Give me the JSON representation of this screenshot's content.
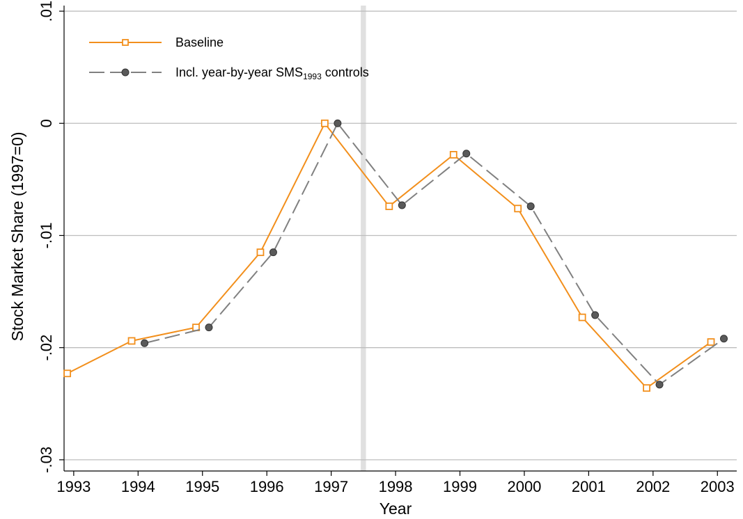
{
  "chart_data": {
    "type": "line",
    "title": "",
    "xlabel": "Year",
    "ylabel": "Stock Market Share (1997=0)",
    "ylim": [
      -0.031,
      0.0105
    ],
    "xlim": [
      1992.85,
      2003.3
    ],
    "y_ticks": [
      {
        "value": 0.01,
        "label": ".01"
      },
      {
        "value": 0.0,
        "label": "0"
      },
      {
        "value": -0.01,
        "label": "-.01"
      },
      {
        "value": -0.02,
        "label": "-.02"
      },
      {
        "value": -0.03,
        "label": "-.03"
      }
    ],
    "x_ticks": [
      {
        "value": 1993,
        "label": "1993"
      },
      {
        "value": 1994,
        "label": "1994"
      },
      {
        "value": 1995,
        "label": "1995"
      },
      {
        "value": 1996,
        "label": "1996"
      },
      {
        "value": 1997,
        "label": "1997"
      },
      {
        "value": 1998,
        "label": "1998"
      },
      {
        "value": 1999,
        "label": "1999"
      },
      {
        "value": 2000,
        "label": "2000"
      },
      {
        "value": 2001,
        "label": "2001"
      },
      {
        "value": 2002,
        "label": "2002"
      },
      {
        "value": 2003,
        "label": "2003"
      }
    ],
    "grid": "horizontal",
    "vertical_band": {
      "x_from": 1997.46,
      "x_to": 1997.54,
      "color": "#e0e0e0"
    },
    "legend_position": "top-left",
    "series": [
      {
        "name": "Baseline",
        "color": "#f28f1c",
        "marker": "hollow-square",
        "line_style": "solid",
        "x": [
          1992.9,
          1993.9,
          1994.9,
          1995.9,
          1996.9,
          1997.9,
          1998.9,
          1999.9,
          2000.9,
          2001.9,
          2002.9
        ],
        "values": [
          -0.0223,
          -0.0194,
          -0.0182,
          -0.0115,
          0.0,
          -0.0074,
          -0.0028,
          -0.0076,
          -0.0173,
          -0.0236,
          -0.0195
        ]
      },
      {
        "name": "Incl. year-by-year SMS",
        "name_subscript": "1993",
        "name_suffix": " controls",
        "color": "#808080",
        "marker": "filled-circle",
        "line_style": "dashed",
        "x": [
          1994.1,
          1995.1,
          1996.1,
          1997.1,
          1998.1,
          1999.1,
          2000.1,
          2001.1,
          2002.1,
          2003.1
        ],
        "values": [
          -0.0196,
          -0.0182,
          -0.0115,
          0.0,
          -0.0073,
          -0.0027,
          -0.0074,
          -0.0171,
          -0.0233,
          -0.0192
        ]
      }
    ],
    "colors": {
      "grid": "#bdbdbd",
      "axis": "#000000",
      "band": "#e0e0e0"
    }
  }
}
